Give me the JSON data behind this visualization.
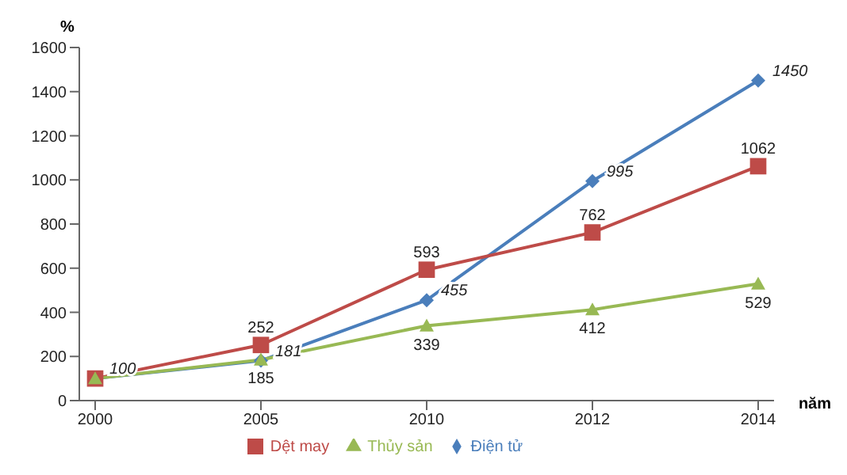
{
  "chart_data": {
    "type": "line",
    "ylabel": "%",
    "xlabel": "năm",
    "categories": [
      "2000",
      "2005",
      "2010",
      "2012",
      "2014"
    ],
    "ylim": [
      0,
      1600
    ],
    "yticks": [
      0,
      200,
      400,
      600,
      800,
      1000,
      1200,
      1400,
      1600
    ],
    "legend": "bottom",
    "series": [
      {
        "name": "Điện tử",
        "color": "#4a7ebb",
        "marker": "diamond",
        "values": [
          100,
          181,
          455,
          995,
          1450
        ],
        "value_labels": [
          "100",
          "181",
          "455",
          "995",
          "1450"
        ]
      },
      {
        "name": "Dệt may",
        "color": "#be4b48",
        "marker": "square",
        "values": [
          100,
          252,
          593,
          762,
          1062
        ],
        "value_labels": [
          null,
          "252",
          "593",
          "762",
          "1062"
        ]
      },
      {
        "name": "Thủy sản",
        "color": "#98b954",
        "marker": "triangle",
        "values": [
          100,
          185,
          339,
          412,
          529
        ],
        "value_labels": [
          null,
          "185",
          "339",
          "412",
          "529"
        ]
      }
    ]
  }
}
